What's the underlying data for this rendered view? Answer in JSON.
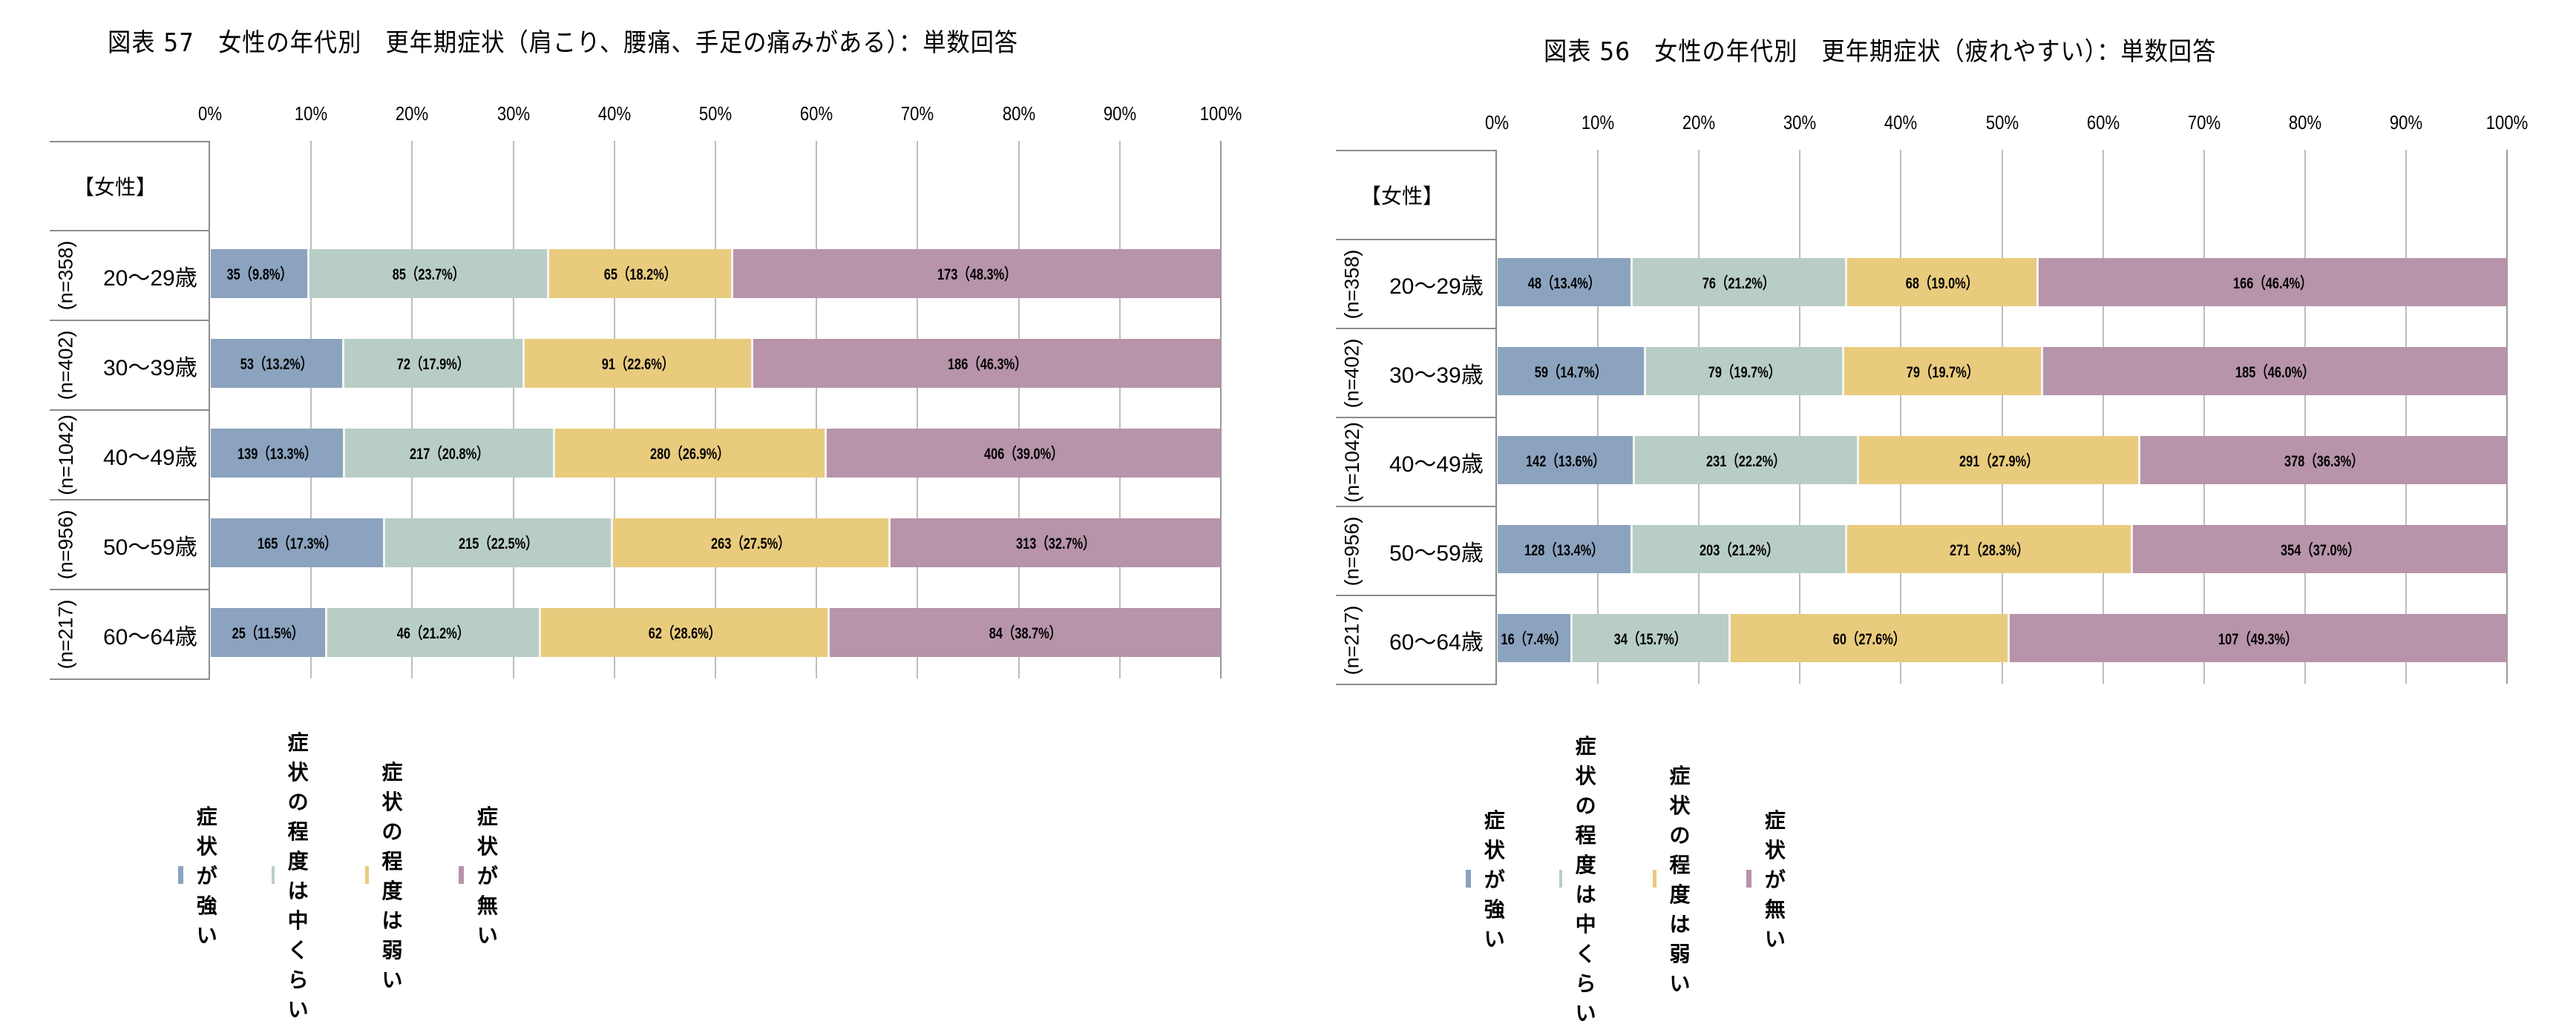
{
  "colors": {
    "strong": "#8ba3bf",
    "moderate": "#b8cdc5",
    "weak": "#e9cb7d",
    "none": "#b794a9"
  },
  "legend": [
    {
      "key": "strong",
      "label": "症状が強い"
    },
    {
      "key": "moderate",
      "label": "症状の程度は中くらい"
    },
    {
      "key": "weak",
      "label": "症状の程度は弱い"
    },
    {
      "key": "none",
      "label": "症状が無い"
    }
  ],
  "axis_ticks": [
    "0%",
    "10%",
    "20%",
    "30%",
    "40%",
    "50%",
    "60%",
    "70%",
    "80%",
    "90%",
    "100%"
  ],
  "chart_data": [
    {
      "type": "bar",
      "orientation": "horizontal-stacked-100",
      "title": "図表 57　女性の年代別　更年期症状（肩こり、腰痛、手足の痛みがある）：単数回答",
      "group_header": "【女性】",
      "xlabel": "",
      "ylabel": "",
      "xlim": [
        0,
        100
      ],
      "grid": true,
      "legend_position": "bottom",
      "categories": [
        "20～29歳",
        "30～39歳",
        "40～49歳",
        "50～59歳",
        "60～64歳"
      ],
      "n_labels": [
        "(n=358)",
        "(n=402)",
        "(n=1042)",
        "(n=956)",
        "(n=217)"
      ],
      "series": [
        {
          "name": "症状が強い",
          "counts": [
            35,
            53,
            139,
            165,
            25
          ],
          "values": [
            9.8,
            13.2,
            13.3,
            17.3,
            11.5
          ],
          "labels": [
            "35（9.8%）",
            "53（13.2%）",
            "139（13.3%）",
            "165（17.3%）",
            "25（11.5%）"
          ]
        },
        {
          "name": "症状の程度は中くらい",
          "counts": [
            85,
            72,
            217,
            215,
            46
          ],
          "values": [
            23.7,
            17.9,
            20.8,
            22.5,
            21.2
          ],
          "labels": [
            "85（23.7%）",
            "72（17.9%）",
            "217（20.8%）",
            "215（22.5%）",
            "46（21.2%）"
          ]
        },
        {
          "name": "症状の程度は弱い",
          "counts": [
            65,
            91,
            280,
            263,
            62
          ],
          "values": [
            18.2,
            22.6,
            26.9,
            27.5,
            28.6
          ],
          "labels": [
            "65（18.2%）",
            "91（22.6%）",
            "280（26.9%）",
            "263（27.5%）",
            "62（28.6%）"
          ]
        },
        {
          "name": "症状が無い",
          "counts": [
            173,
            186,
            406,
            313,
            84
          ],
          "values": [
            48.3,
            46.3,
            39.0,
            32.7,
            38.7
          ],
          "labels": [
            "173（48.3%）",
            "186（46.3%）",
            "406（39.0%）",
            "313（32.7%）",
            "84（38.7%）"
          ]
        }
      ]
    },
    {
      "type": "bar",
      "orientation": "horizontal-stacked-100",
      "title": "図表 56　女性の年代別　更年期症状（疲れやすい）：単数回答",
      "group_header": "【女性】",
      "xlabel": "",
      "ylabel": "",
      "xlim": [
        0,
        100
      ],
      "grid": true,
      "legend_position": "bottom",
      "categories": [
        "20～29歳",
        "30～39歳",
        "40～49歳",
        "50～59歳",
        "60～64歳"
      ],
      "n_labels": [
        "(n=358)",
        "(n=402)",
        "(n=1042)",
        "(n=956)",
        "(n=217)"
      ],
      "series": [
        {
          "name": "症状が強い",
          "counts": [
            48,
            59,
            142,
            128,
            16
          ],
          "values": [
            13.4,
            14.7,
            13.6,
            13.4,
            7.4
          ],
          "labels": [
            "48（13.4%）",
            "59（14.7%）",
            "142（13.6%）",
            "128（13.4%）",
            "16（7.4%）"
          ]
        },
        {
          "name": "症状の程度は中くらい",
          "counts": [
            76,
            79,
            231,
            203,
            34
          ],
          "values": [
            21.2,
            19.7,
            22.2,
            21.2,
            15.7
          ],
          "labels": [
            "76（21.2%）",
            "79（19.7%）",
            "231（22.2%）",
            "203（21.2%）",
            "34（15.7%）"
          ]
        },
        {
          "name": "症状の程度は弱い",
          "counts": [
            68,
            79,
            291,
            271,
            60
          ],
          "values": [
            19.0,
            19.7,
            27.9,
            28.3,
            27.6
          ],
          "labels": [
            "68（19.0%）",
            "79（19.7%）",
            "291（27.9%）",
            "271（28.3%）",
            "60（27.6%）"
          ]
        },
        {
          "name": "症状が無い",
          "counts": [
            166,
            185,
            378,
            354,
            107
          ],
          "values": [
            46.4,
            46.0,
            36.3,
            37.0,
            49.3
          ],
          "labels": [
            "166（46.4%）",
            "185（46.0%）",
            "378（36.3%）",
            "354（37.0%）",
            "107（49.3%）"
          ]
        }
      ]
    }
  ]
}
